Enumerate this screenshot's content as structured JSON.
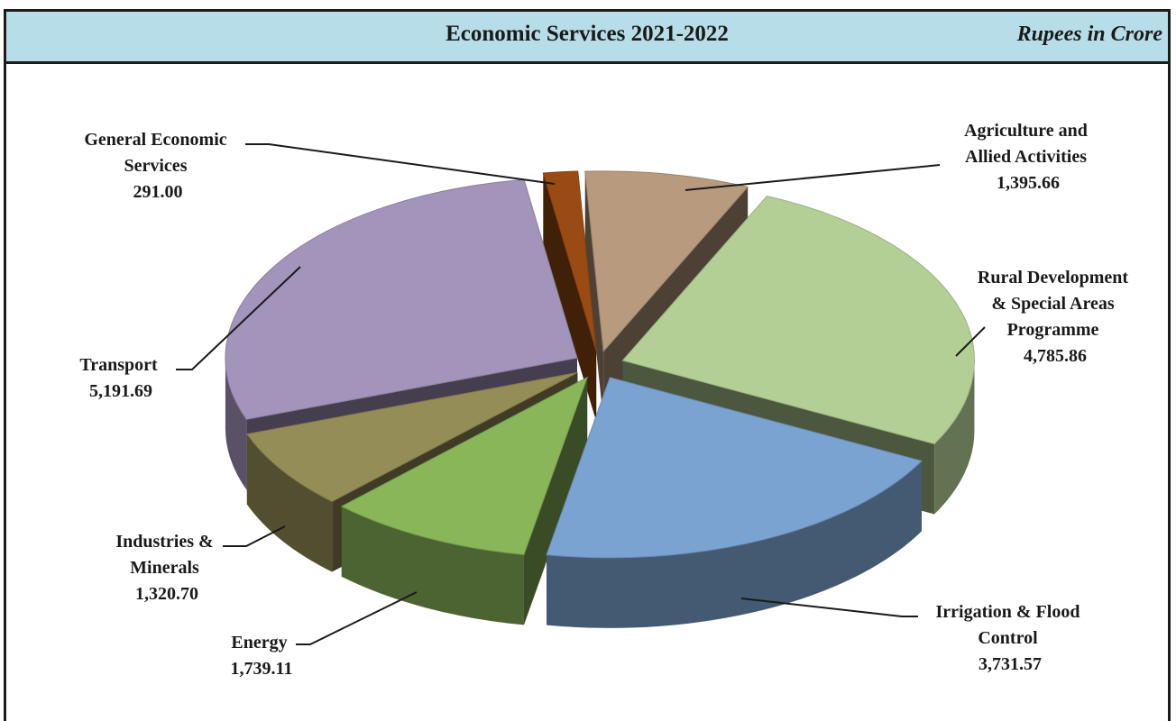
{
  "header": {
    "title": "Economic Services 2021-2022",
    "unit": "Rupees in Crore"
  },
  "chart_data": {
    "type": "pie",
    "title": "Economic Services 2021-2022",
    "unit": "Rupees in Crore",
    "three_d": true,
    "exploded": true,
    "slices": [
      {
        "label": "Agriculture and Allied Activities",
        "value": 1395.66,
        "value_label": "1,395.66",
        "color": "#b89a7e"
      },
      {
        "label": "Rural Development & Special Areas Programme",
        "value": 4785.86,
        "value_label": "4,785.86",
        "color": "#b3cf96"
      },
      {
        "label": "Irrigation & Flood Control",
        "value": 3731.57,
        "value_label": "3,731.57",
        "color": "#7ba3d1"
      },
      {
        "label": "Energy",
        "value": 1739.11,
        "value_label": "1,739.11",
        "color": "#8ab65a"
      },
      {
        "label": "Industries & Minerals",
        "value": 1320.7,
        "value_label": "1,320.70",
        "color": "#958d58"
      },
      {
        "label": "Transport",
        "value": 5191.69,
        "value_label": "5,191.69",
        "color": "#a394bb"
      },
      {
        "label": "General Economic Services",
        "value": 291.0,
        "value_label": "291.00",
        "color": "#9a4b14"
      }
    ]
  }
}
